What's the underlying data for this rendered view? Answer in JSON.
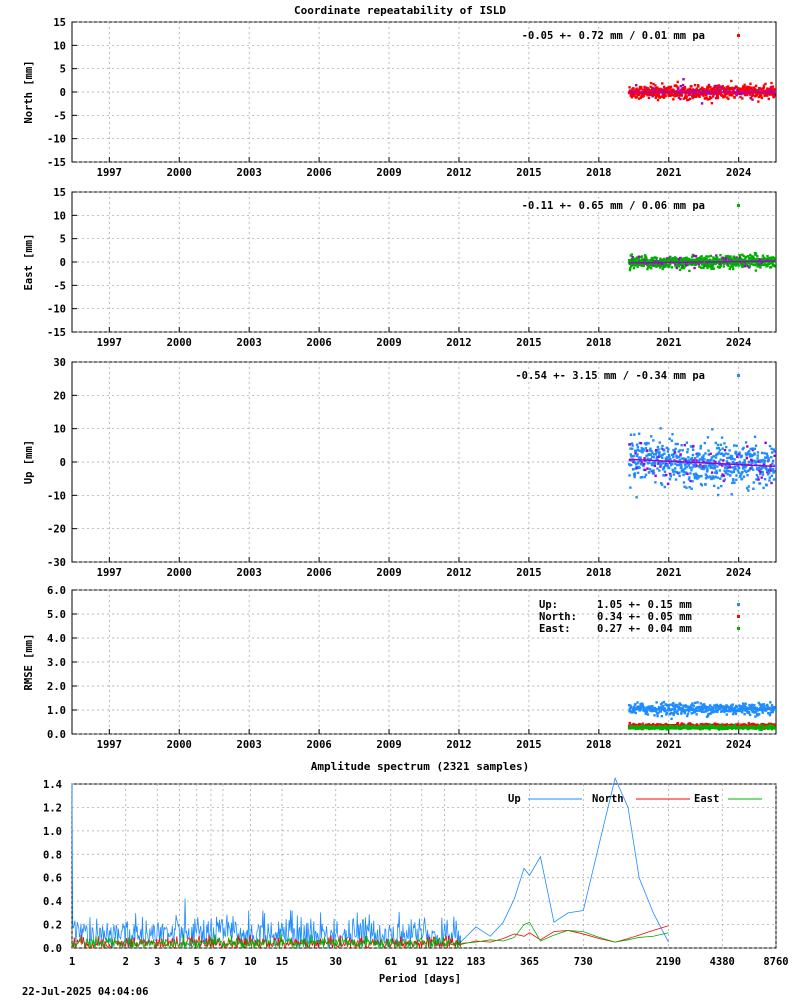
{
  "title": "Coordinate repeatability of ISLD",
  "date_stamp": "22-Jul-2025 04:04:06",
  "colors": {
    "north": "#ff0000",
    "east": "#00b000",
    "up": "#1e8cff",
    "model": "#a000d0",
    "grid": "#a0a0a0"
  },
  "chart_data": [
    {
      "type": "scatter",
      "panel": "north",
      "title": "",
      "ylabel": "North [mm]",
      "ylim": [
        -15,
        15
      ],
      "yticks": [
        15,
        10,
        5,
        0,
        -5,
        -10,
        -15
      ],
      "xlim": [
        1995.4,
        2025.6
      ],
      "xticks": [
        1997,
        2000,
        2003,
        2006,
        2009,
        2012,
        2015,
        2018,
        2021,
        2024
      ],
      "annotation": "-0.05 +- 0.72 mm /  0.01 mm pa",
      "data_span": [
        2019.3,
        2025.55
      ],
      "spread": 1.2,
      "trend": [
        0.0,
        0.0
      ]
    },
    {
      "type": "scatter",
      "panel": "east",
      "ylabel": "East [mm]",
      "ylim": [
        -15,
        15
      ],
      "yticks": [
        15,
        10,
        5,
        0,
        -5,
        -10,
        -15
      ],
      "xlim": [
        1995.4,
        2025.6
      ],
      "xticks": [
        1997,
        2000,
        2003,
        2006,
        2009,
        2012,
        2015,
        2018,
        2021,
        2024
      ],
      "annotation": "-0.11 +- 0.65 mm /  0.06 mm pa",
      "data_span": [
        2019.3,
        2025.55
      ],
      "spread": 1.1,
      "trend": [
        -0.2,
        0.2
      ]
    },
    {
      "type": "scatter",
      "panel": "up",
      "ylabel": "Up [mm]",
      "ylim": [
        -30,
        30
      ],
      "yticks": [
        30,
        20,
        10,
        0,
        -10,
        -20,
        -30
      ],
      "xlim": [
        1995.4,
        2025.6
      ],
      "xticks": [
        1997,
        2000,
        2003,
        2006,
        2009,
        2012,
        2015,
        2018,
        2021,
        2024
      ],
      "annotation": "-0.54 +- 3.15 mm / -0.34 mm pa",
      "data_span": [
        2019.3,
        2025.55
      ],
      "spread": 5.0,
      "trend": [
        0.8,
        -1.3
      ]
    },
    {
      "type": "scatter",
      "panel": "rmse",
      "ylabel": "RMSE [mm]",
      "ylim": [
        0,
        6
      ],
      "yticks": [
        "6.0",
        "5.0",
        "4.0",
        "3.0",
        "2.0",
        "1.0",
        "0.0"
      ],
      "xlim": [
        1995.4,
        2025.6
      ],
      "xticks": [
        1997,
        2000,
        2003,
        2006,
        2009,
        2012,
        2015,
        2018,
        2021,
        2024
      ],
      "data_span": [
        2019.3,
        2025.55
      ],
      "legend": [
        {
          "name": "Up:",
          "text": "1.05 +- 0.15 mm",
          "value": 1.05
        },
        {
          "name": "North:",
          "text": "0.34 +- 0.05 mm",
          "value": 0.34
        },
        {
          "name": "East:",
          "text": "0.27 +- 0.04 mm",
          "value": 0.27
        }
      ]
    },
    {
      "type": "line",
      "panel": "spectrum",
      "title": "Amplitude spectrum (2321 samples)",
      "xlabel": "Period [days]",
      "ylim": [
        0,
        1.4
      ],
      "yticks": [
        "1.4",
        "1.2",
        "1.0",
        "0.8",
        "0.6",
        "0.4",
        "0.2",
        "0.0"
      ],
      "xscale": "log",
      "xlim": [
        1,
        8760
      ],
      "xtick_labels": [
        "1",
        "2",
        "3",
        "4",
        "5",
        "6",
        "7",
        "10",
        "15",
        "30",
        "61",
        "91",
        "122",
        "183",
        "365",
        "730",
        "2190",
        "4380",
        "8760"
      ],
      "xtick_values": [
        1,
        2,
        3,
        4,
        5,
        6,
        7,
        10,
        15,
        30,
        61,
        91,
        122,
        183,
        365,
        730,
        2190,
        4380,
        8760
      ],
      "legend": [
        "Up",
        "North",
        "East"
      ],
      "series": [
        {
          "name": "Up",
          "x": [
            150,
            183,
            220,
            260,
            300,
            340,
            365,
            420,
            500,
            600,
            730,
            900,
            1100,
            1300,
            1500,
            1800,
            2190
          ],
          "y": [
            0.05,
            0.18,
            0.1,
            0.22,
            0.42,
            0.68,
            0.62,
            0.78,
            0.22,
            0.3,
            0.32,
            0.9,
            1.45,
            1.2,
            0.6,
            0.3,
            0.05
          ]
        },
        {
          "name": "North",
          "x": [
            150,
            183,
            220,
            260,
            300,
            340,
            365,
            420,
            500,
            600,
            730,
            900,
            1100,
            1300,
            1500,
            1800,
            2190
          ],
          "y": [
            0.03,
            0.06,
            0.05,
            0.08,
            0.12,
            0.1,
            0.13,
            0.07,
            0.14,
            0.15,
            0.12,
            0.08,
            0.05,
            0.08,
            0.11,
            0.15,
            0.19
          ]
        },
        {
          "name": "East",
          "x": [
            150,
            183,
            220,
            260,
            300,
            340,
            365,
            420,
            500,
            600,
            730,
            900,
            1100,
            1300,
            1500,
            1800,
            2190
          ],
          "y": [
            0.04,
            0.05,
            0.07,
            0.06,
            0.09,
            0.2,
            0.22,
            0.06,
            0.11,
            0.15,
            0.14,
            0.09,
            0.05,
            0.07,
            0.09,
            0.1,
            0.13
          ]
        }
      ]
    }
  ]
}
